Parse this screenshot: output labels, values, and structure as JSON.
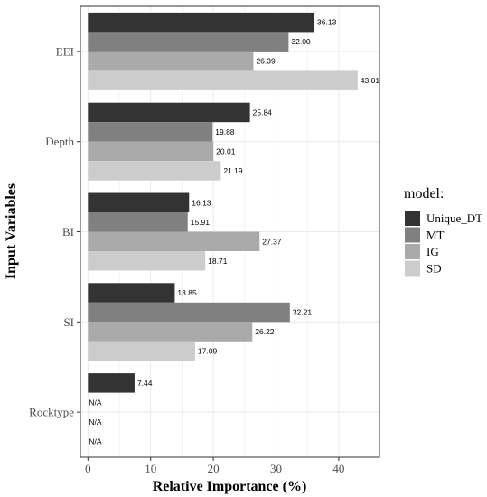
{
  "chart_data": {
    "type": "bar",
    "orientation": "horizontal",
    "categories": [
      "EEI",
      "Depth",
      "BI",
      "SI",
      "Rocktype"
    ],
    "series": [
      {
        "name": "Unique_DT",
        "color": "#333333",
        "values": [
          36.13,
          25.84,
          16.13,
          13.85,
          7.44
        ],
        "labels": [
          "36.13",
          "25.84",
          "16.13",
          "13.85",
          "7.44"
        ]
      },
      {
        "name": "MT",
        "color": "#808080",
        "values": [
          32.0,
          19.88,
          15.91,
          32.21,
          null
        ],
        "labels": [
          "32.00",
          "19.88",
          "15.91",
          "32.21",
          "N/A"
        ]
      },
      {
        "name": "IG",
        "color": "#aaaaaa",
        "values": [
          26.39,
          20.01,
          27.37,
          26.22,
          null
        ],
        "labels": [
          "26.39",
          "20.01",
          "27.37",
          "26.22",
          "N/A"
        ]
      },
      {
        "name": "SD",
        "color": "#cccccc",
        "values": [
          43.01,
          21.19,
          18.71,
          17.09,
          null
        ],
        "labels": [
          "43.01",
          "21.19",
          "18.71",
          "17.09",
          "N/A"
        ]
      }
    ],
    "xlabel": "Relative Importance  (%)",
    "ylabel": "Input Variables",
    "xlim": [
      -1.2,
      46.5
    ],
    "xticks": [
      "0",
      "10",
      "20",
      "30",
      "40"
    ],
    "legend_title": "model:",
    "legend_position": "right",
    "grid": true
  }
}
